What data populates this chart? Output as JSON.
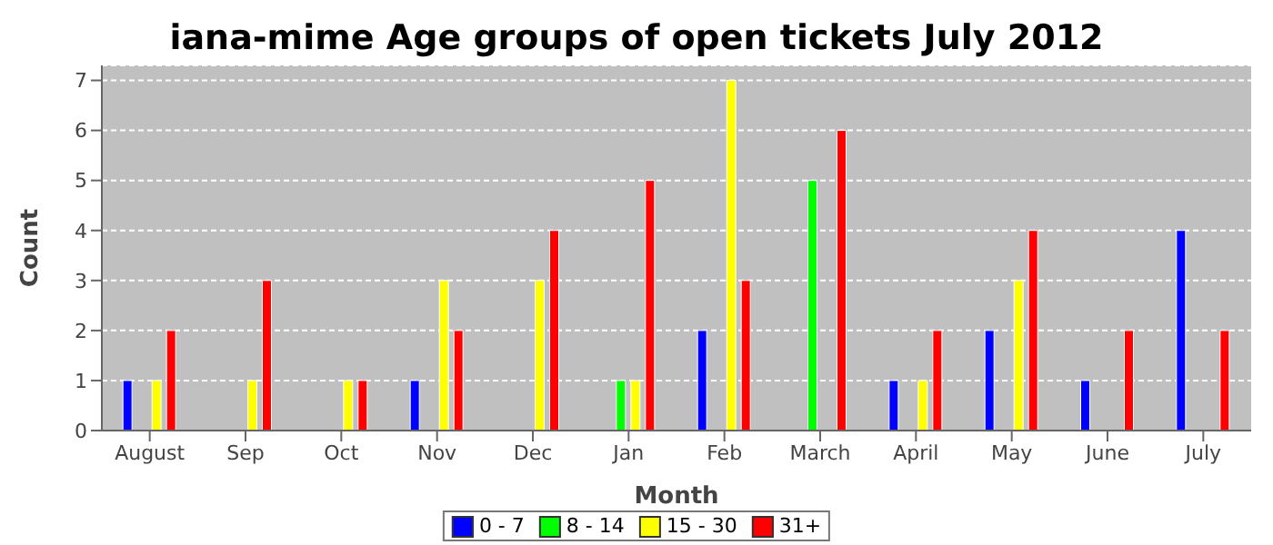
{
  "chart_data": {
    "type": "bar",
    "title": "iana-mime Age groups of open tickets July 2012",
    "xlabel": "Month",
    "ylabel": "Count",
    "categories": [
      "August",
      "Sep",
      "Oct",
      "Nov",
      "Dec",
      "Jan",
      "Feb",
      "March",
      "April",
      "May",
      "June",
      "July"
    ],
    "series": [
      {
        "name": "0 - 7",
        "color": "#0000ff",
        "values": [
          1,
          0,
          0,
          1,
          0,
          0,
          2,
          0,
          1,
          2,
          1,
          4
        ]
      },
      {
        "name": "8 - 14",
        "color": "#00ff00",
        "values": [
          0,
          0,
          0,
          0,
          0,
          1,
          0,
          5,
          0,
          0,
          0,
          0
        ]
      },
      {
        "name": "15 - 30",
        "color": "#ffff00",
        "values": [
          1,
          1,
          1,
          3,
          3,
          1,
          7,
          0,
          1,
          3,
          0,
          0
        ]
      },
      {
        "name": "31+",
        "color": "#ff0000",
        "values": [
          2,
          3,
          1,
          2,
          4,
          5,
          3,
          6,
          2,
          4,
          2,
          2
        ]
      }
    ],
    "ylim": [
      0,
      7.3
    ],
    "yticks": [
      0,
      1,
      2,
      3,
      4,
      5,
      6,
      7
    ],
    "grid": "y",
    "legend": "bottom"
  }
}
